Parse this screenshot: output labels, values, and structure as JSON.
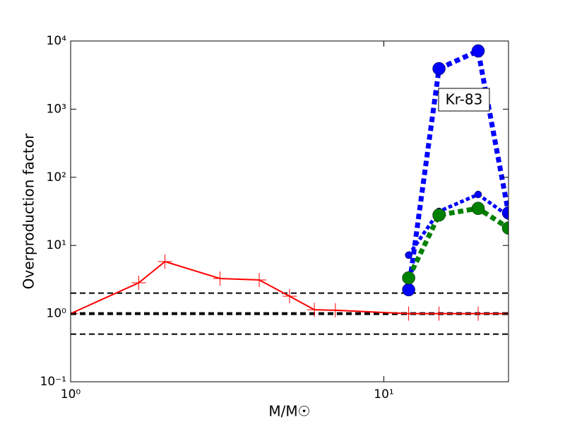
{
  "chart_data": {
    "type": "line",
    "xlabel": "M/M☉",
    "ylabel": "Overproduction factor",
    "xscale": "log",
    "yscale": "log",
    "xlim": [
      1,
      25
    ],
    "ylim": [
      0.1,
      10000
    ],
    "xticks": [
      {
        "value": 1,
        "label": "10⁰"
      },
      {
        "value": 10,
        "label": "10¹"
      }
    ],
    "yticks": [
      {
        "value": 0.1,
        "label": "10⁻¹"
      },
      {
        "value": 1,
        "label": "10⁰"
      },
      {
        "value": 10,
        "label": "10¹"
      },
      {
        "value": 100,
        "label": "10²"
      },
      {
        "value": 1000,
        "label": "10³"
      },
      {
        "value": 10000,
        "label": "10⁴"
      }
    ],
    "hlines": [
      {
        "value": 2,
        "color": "#000000",
        "width": 2
      },
      {
        "value": 1,
        "color": "#000000",
        "width": 4
      },
      {
        "value": 0.5,
        "color": "#000000",
        "width": 2
      }
    ],
    "series": [
      {
        "color": "#ff0000",
        "linestyle": "solid",
        "linewidth": 2,
        "marker": "+",
        "markersize": 10,
        "x": [
          1,
          1.65,
          2,
          3,
          4,
          5,
          6,
          7,
          12,
          15,
          20,
          25
        ],
        "values": [
          1,
          2.83,
          5.8,
          3.27,
          3.12,
          1.8,
          1.14,
          1.12,
          1.0,
          1.0,
          1.0,
          1.0
        ]
      },
      {
        "color": "#0000ff",
        "linestyle": "dotted",
        "linewidth": 7,
        "marker": "o",
        "markersize": 9,
        "x": [
          12,
          15,
          20,
          25
        ],
        "values": [
          2.24,
          3930,
          7160,
          30
        ]
      },
      {
        "color": "#0000ff",
        "linestyle": "dotted",
        "linewidth": 5,
        "marker": "o",
        "markersize": 5,
        "x": [
          12,
          15,
          20,
          25
        ],
        "values": [
          7.2,
          31.6,
          56,
          27
        ]
      },
      {
        "color": "#008000",
        "linestyle": "dotted",
        "linewidth": 7,
        "marker": "o",
        "markersize": 9,
        "x": [
          12,
          15,
          20,
          25
        ],
        "values": [
          3.34,
          28,
          35,
          18
        ]
      }
    ],
    "annotation": "Kr-83"
  }
}
